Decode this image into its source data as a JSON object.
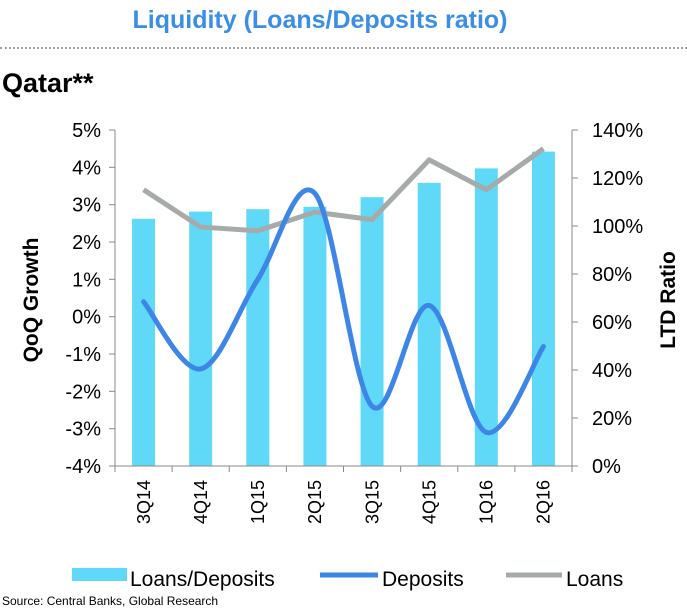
{
  "title": "Liquidity (Loans/Deposits ratio)",
  "subtitle": "Qatar**",
  "source": "Source: Central Banks, Global Research",
  "colors": {
    "title": "#3a8ee6",
    "bars": "#5fd9f7",
    "deposits": "#3d86e8",
    "loans": "#a6aaa8"
  },
  "chart_data": {
    "type": "bar",
    "categories": [
      "3Q14",
      "4Q14",
      "1Q15",
      "2Q15",
      "3Q15",
      "4Q15",
      "1Q16",
      "2Q16"
    ],
    "y_left_label": "QoQ Growth",
    "y_right_label": "LTD Ratio",
    "y_left_ticks": [
      "-4%",
      "-3%",
      "-2%",
      "-1%",
      "0%",
      "1%",
      "2%",
      "3%",
      "4%",
      "5%"
    ],
    "y_right_ticks": [
      "0%",
      "20%",
      "40%",
      "60%",
      "80%",
      "100%",
      "120%",
      "140%"
    ],
    "y_left_range": [
      -4,
      5
    ],
    "y_right_range": [
      0,
      140
    ],
    "grid": false,
    "legend_position": "bottom",
    "series": [
      {
        "name": "Loans/Deposits",
        "type": "bar",
        "axis": "right",
        "values": [
          103,
          106,
          107,
          108,
          112,
          118,
          124,
          131
        ]
      },
      {
        "name": "Deposits",
        "type": "line",
        "smooth": true,
        "axis": "left",
        "values": [
          0.4,
          -1.4,
          1.0,
          3.3,
          -2.4,
          0.3,
          -3.1,
          -0.8
        ]
      },
      {
        "name": "Loans",
        "type": "line",
        "axis": "left",
        "values": [
          3.4,
          2.4,
          2.3,
          2.8,
          2.6,
          4.2,
          3.4,
          4.5
        ]
      }
    ]
  }
}
